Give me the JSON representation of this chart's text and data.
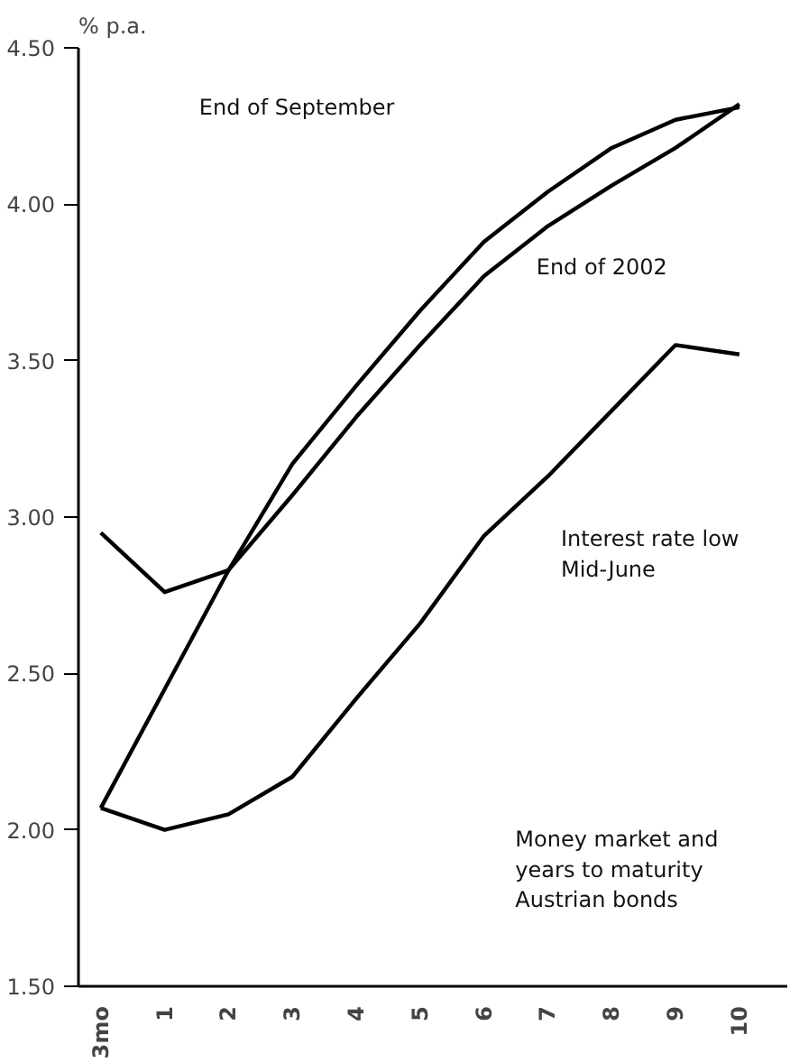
{
  "chart_data": {
    "type": "line",
    "ylabel": "% p.a.",
    "categories": [
      "3mo",
      "1",
      "2",
      "3",
      "4",
      "5",
      "6",
      "7",
      "8",
      "9",
      "10"
    ],
    "series": [
      {
        "color": "#000000",
        "values": [
          2.95,
          2.76,
          2.83,
          3.07,
          3.32,
          3.55,
          3.77,
          3.93,
          4.06,
          4.18,
          4.32
        ]
      },
      {
        "color": "#000000",
        "values": [
          2.07,
          2.45,
          2.83,
          3.17,
          3.42,
          3.66,
          3.88,
          4.04,
          4.18,
          4.27,
          4.31
        ]
      },
      {
        "color": "#000000",
        "values": [
          2.07,
          2.0,
          2.05,
          2.17,
          2.42,
          2.66,
          2.94,
          3.13,
          3.34,
          3.55,
          3.52
        ]
      }
    ],
    "ylim": [
      1.5,
      4.5
    ],
    "yticks": [
      {
        "value": 1.5,
        "label": "1.50"
      },
      {
        "value": 2.0,
        "label": "2.00"
      },
      {
        "value": 2.5,
        "label": "2.50"
      },
      {
        "value": 3.0,
        "label": "3.00"
      },
      {
        "value": 3.5,
        "label": "3.50"
      },
      {
        "value": 4.0,
        "label": "4.00"
      },
      {
        "value": 4.5,
        "label": "4.50"
      }
    ],
    "grid": false,
    "marker": "none",
    "line_style": "solid",
    "annotations": [
      "End of September",
      "End of 2002",
      "Interest rate low\nMid-June",
      "Money market and\nyears to maturity\nAustrian bonds"
    ]
  }
}
